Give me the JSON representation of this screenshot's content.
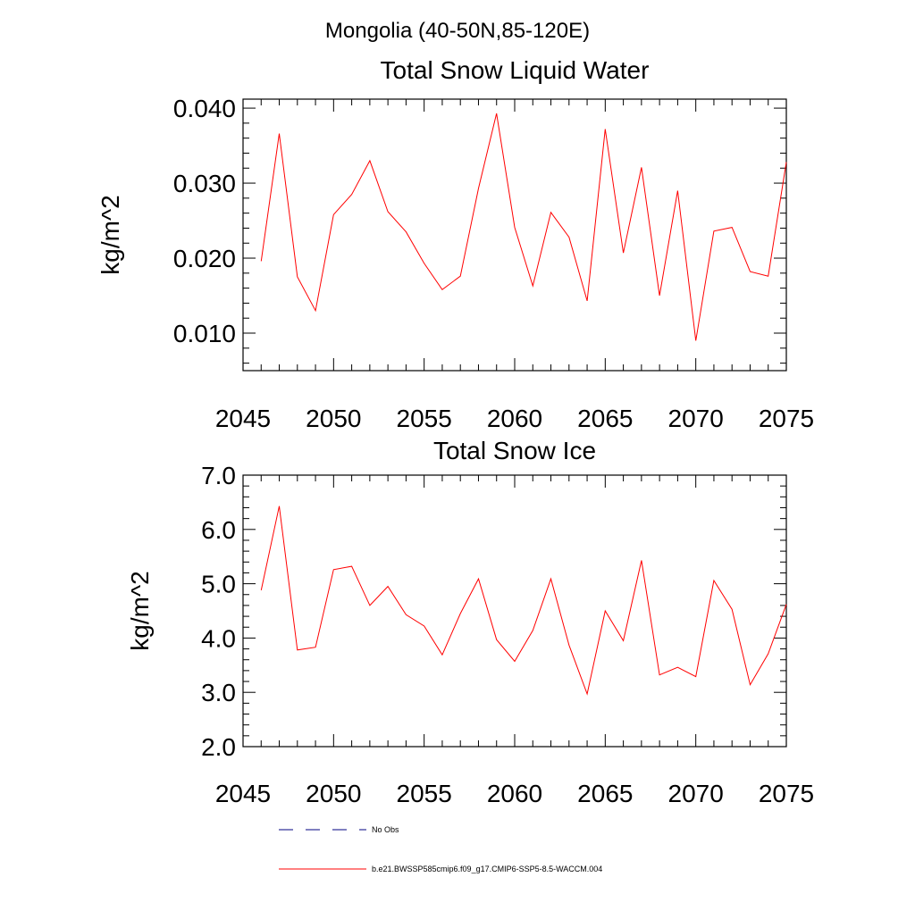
{
  "page_title": "Mongolia (40-50N,85-120E)",
  "legend": {
    "entries": [
      {
        "label": "No Obs",
        "color": "#000080",
        "style": "dashed"
      },
      {
        "label": "b.e21.BWSSP585cmip6.f09_g17.CMIP6-SSP5-8.5-WACCM.004",
        "color": "#ff0000",
        "style": "solid"
      }
    ]
  },
  "chart_data": [
    {
      "type": "line",
      "title": "Total Snow Liquid Water",
      "xlabel": "",
      "ylabel": "kg/m^2",
      "xlim": [
        2045,
        2075
      ],
      "ylim": [
        0.005,
        0.0412
      ],
      "xticks": [
        "2045",
        "2050",
        "2055",
        "2060",
        "2065",
        "2070",
        "2075"
      ],
      "yticks": [
        "0.010",
        "0.020",
        "0.030",
        "0.040"
      ],
      "x": [
        2046,
        2047,
        2048,
        2049,
        2050,
        2051,
        2052,
        2053,
        2054,
        2055,
        2056,
        2057,
        2058,
        2059,
        2060,
        2061,
        2062,
        2063,
        2064,
        2065,
        2066,
        2067,
        2068,
        2069,
        2070,
        2071,
        2072,
        2073,
        2074,
        2075
      ],
      "series": [
        {
          "name": "b.e21.BWSSP585cmip6.f09_g17.CMIP6-SSP5-8.5-WACCM.004",
          "color": "#ff0000",
          "values": [
            0.0196,
            0.0366,
            0.0175,
            0.013,
            0.0258,
            0.0285,
            0.033,
            0.0262,
            0.0235,
            0.0193,
            0.0158,
            0.0176,
            0.0293,
            0.0393,
            0.0241,
            0.0163,
            0.0261,
            0.0228,
            0.0143,
            0.0372,
            0.0207,
            0.0321,
            0.015,
            0.029,
            0.009,
            0.0236,
            0.0241,
            0.0182,
            0.0176,
            0.0328
          ]
        }
      ]
    },
    {
      "type": "line",
      "title": "Total Snow Ice",
      "xlabel": "",
      "ylabel": "kg/m^2",
      "xlim": [
        2045,
        2075
      ],
      "ylim": [
        2.0,
        7.0
      ],
      "xticks": [
        "2045",
        "2050",
        "2055",
        "2060",
        "2065",
        "2070",
        "2075"
      ],
      "yticks": [
        "2.0",
        "3.0",
        "4.0",
        "5.0",
        "6.0",
        "7.0"
      ],
      "x": [
        2046,
        2047,
        2048,
        2049,
        2050,
        2051,
        2052,
        2053,
        2054,
        2055,
        2056,
        2057,
        2058,
        2059,
        2060,
        2061,
        2062,
        2063,
        2064,
        2065,
        2066,
        2067,
        2068,
        2069,
        2070,
        2071,
        2072,
        2073,
        2074,
        2075
      ],
      "series": [
        {
          "name": "b.e21.BWSSP585cmip6.f09_g17.CMIP6-SSP5-8.5-WACCM.004",
          "color": "#ff0000",
          "values": [
            4.88,
            6.43,
            3.78,
            3.83,
            5.26,
            5.32,
            4.6,
            4.95,
            4.43,
            4.22,
            3.69,
            4.45,
            5.09,
            3.97,
            3.57,
            4.14,
            5.09,
            3.87,
            2.97,
            4.5,
            3.95,
            5.43,
            3.32,
            3.46,
            3.29,
            5.06,
            4.53,
            3.14,
            3.71,
            4.62
          ]
        }
      ]
    }
  ]
}
